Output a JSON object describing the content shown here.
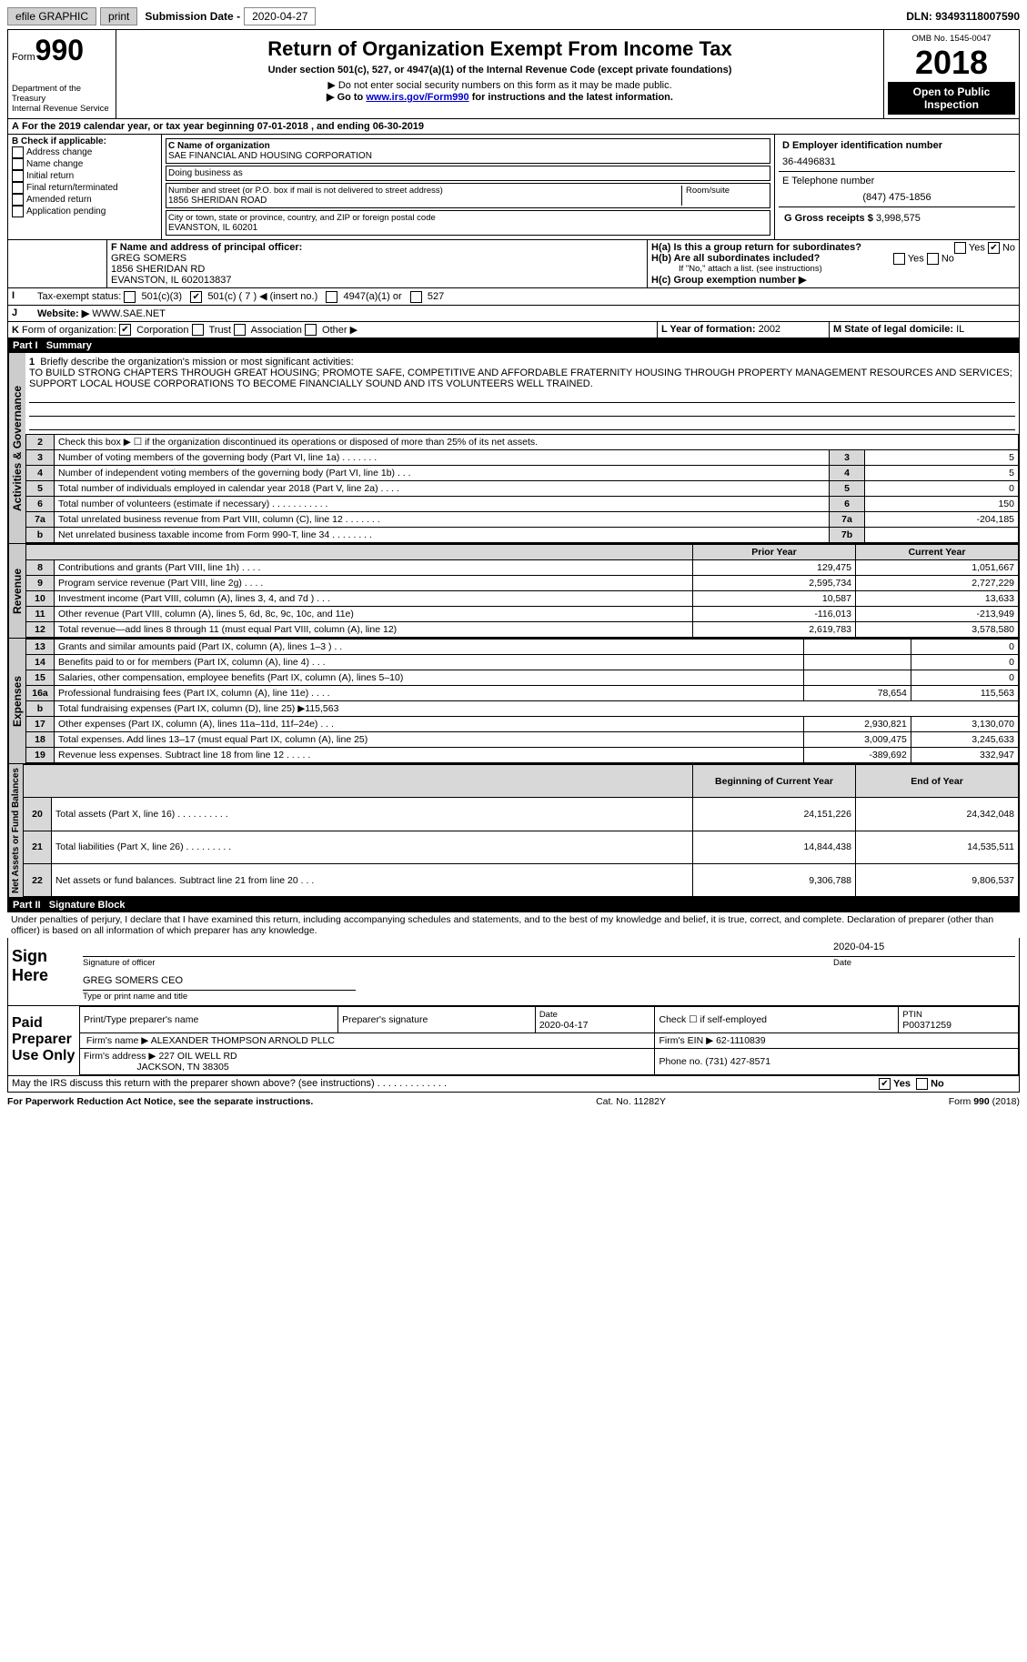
{
  "topbar": {
    "efile": "efile GRAPHIC",
    "print": "print",
    "subdate_lbl": "Submission Date -",
    "subdate": "2020-04-27",
    "dln": "DLN: 93493118007590"
  },
  "header": {
    "form_word": "Form",
    "form_num": "990",
    "dept": "Department of the Treasury\nInternal Revenue Service",
    "title": "Return of Organization Exempt From Income Tax",
    "subtitle": "Under section 501(c), 527, or 4947(a)(1) of the Internal Revenue Code (except private foundations)",
    "note1": "▶ Do not enter social security numbers on this form as it may be made public.",
    "note2_pre": "▶ Go to ",
    "note2_link": "www.irs.gov/Form990",
    "note2_post": " for instructions and the latest information.",
    "omb": "OMB No. 1545-0047",
    "year": "2018",
    "open": "Open to Public Inspection"
  },
  "periodA": "For the 2019 calendar year, or tax year beginning 07-01-2018    , and ending 06-30-2019",
  "B": {
    "title": "B Check if applicable:",
    "items": [
      "Address change",
      "Name change",
      "Initial return",
      "Final return/terminated",
      "Amended return",
      "Application pending"
    ]
  },
  "C": {
    "name_lbl": "C Name of organization",
    "name": "SAE FINANCIAL AND HOUSING CORPORATION",
    "dba_lbl": "Doing business as",
    "street_lbl": "Number and street (or P.O. box if mail is not delivered to street address)",
    "room_lbl": "Room/suite",
    "street": "1856 SHERIDAN ROAD",
    "city_lbl": "City or town, state or province, country, and ZIP or foreign postal code",
    "city": "EVANSTON, IL  60201"
  },
  "D": {
    "lbl": "D Employer identification number",
    "val": "36-4496831"
  },
  "E": {
    "lbl": "E Telephone number",
    "val": "(847) 475-1856"
  },
  "G": {
    "lbl": "G Gross receipts $",
    "val": "3,998,575"
  },
  "F": {
    "lbl": "F  Name and address of principal officer:",
    "name": "GREG SOMERS",
    "addr1": "1856 SHERIDAN RD",
    "addr2": "EVANSTON, IL  602013837"
  },
  "H": {
    "a": "H(a)  Is this a group return for subordinates?",
    "b": "H(b)  Are all subordinates included?",
    "bnote": "If \"No,\" attach a list. (see instructions)",
    "c": "H(c)  Group exemption number ▶",
    "yes": "Yes",
    "no": "No"
  },
  "I": {
    "lbl": "Tax-exempt status:",
    "a": "501(c)(3)",
    "b": "501(c) ( 7 ) ◀ (insert no.)",
    "c": "4947(a)(1) or",
    "d": "527"
  },
  "J": {
    "lbl": "Website: ▶",
    "val": "WWW.SAE.NET"
  },
  "K": {
    "lbl": "Form of organization:",
    "a": "Corporation",
    "b": "Trust",
    "c": "Association",
    "d": "Other ▶"
  },
  "L": {
    "lbl": "L Year of formation:",
    "val": "2002"
  },
  "M": {
    "lbl": "M State of legal domicile:",
    "val": "IL"
  },
  "part1": {
    "label": "Part I",
    "title": "Summary"
  },
  "mission": {
    "lbl": "Briefly describe the organization's mission or most significant activities:",
    "text": "TO BUILD STRONG CHAPTERS THROUGH GREAT HOUSING; PROMOTE SAFE, COMPETITIVE AND AFFORDABLE FRATERNITY HOUSING THROUGH PROPERTY MANAGEMENT RESOURCES AND SERVICES; SUPPORT LOCAL HOUSE CORPORATIONS TO BECOME FINANCIALLY SOUND AND ITS VOLUNTEERS WELL TRAINED."
  },
  "ag_label": "Activities & Governance",
  "rev_label": "Revenue",
  "exp_label": "Expenses",
  "na_label": "Net Assets or Fund Balances",
  "lines_ag": [
    {
      "n": "2",
      "d": "Check this box ▶ ☐  if the organization discontinued its operations or disposed of more than 25% of its net assets."
    },
    {
      "n": "3",
      "d": "Number of voting members of the governing body (Part VI, line 1a)   .     .     .     .     .     .     .",
      "box": "3",
      "v": "5"
    },
    {
      "n": "4",
      "d": "Number of independent voting members of the governing body (Part VI, line 1b)   .     .     .",
      "box": "4",
      "v": "5"
    },
    {
      "n": "5",
      "d": "Total number of individuals employed in calendar year 2018 (Part V, line 2a)   .     .     .     .",
      "box": "5",
      "v": "0"
    },
    {
      "n": "6",
      "d": "Total number of volunteers (estimate if necessary)    .     .     .     .     .     .     .     .     .     .     .",
      "box": "6",
      "v": "150"
    },
    {
      "n": "7a",
      "d": "Total unrelated business revenue from Part VIII, column (C), line 12   .     .     .     .     .     .     .",
      "box": "7a",
      "v": "-204,185"
    },
    {
      "n": "b",
      "d": "Net unrelated business taxable income from Form 990-T, line 34   .     .     .     .     .     .     .     .",
      "box": "7b",
      "v": ""
    }
  ],
  "col_py": "Prior Year",
  "col_cy": "Current Year",
  "lines_rev": [
    {
      "n": "8",
      "d": "Contributions and grants (Part VIII, line 1h)   .     .     .     .",
      "py": "129,475",
      "cy": "1,051,667"
    },
    {
      "n": "9",
      "d": "Program service revenue (Part VIII, line 2g)   .     .     .     .",
      "py": "2,595,734",
      "cy": "2,727,229"
    },
    {
      "n": "10",
      "d": "Investment income (Part VIII, column (A), lines 3, 4, and 7d )   .     .     .",
      "py": "10,587",
      "cy": "13,633"
    },
    {
      "n": "11",
      "d": "Other revenue (Part VIII, column (A), lines 5, 6d, 8c, 9c, 10c, and 11e)",
      "py": "-116,013",
      "cy": "-213,949"
    },
    {
      "n": "12",
      "d": "Total revenue—add lines 8 through 11 (must equal Part VIII, column (A), line 12)",
      "py": "2,619,783",
      "cy": "3,578,580"
    }
  ],
  "lines_exp": [
    {
      "n": "13",
      "d": "Grants and similar amounts paid (Part IX, column (A), lines 1–3 )   .     .",
      "py": "",
      "cy": "0"
    },
    {
      "n": "14",
      "d": "Benefits paid to or for members (Part IX, column (A), line 4)   .     .     .",
      "py": "",
      "cy": "0"
    },
    {
      "n": "15",
      "d": "Salaries, other compensation, employee benefits (Part IX, column (A), lines 5–10)",
      "py": "",
      "cy": "0"
    },
    {
      "n": "16a",
      "d": "Professional fundraising fees (Part IX, column (A), line 11e)   .     .     .     .",
      "py": "78,654",
      "cy": "115,563"
    },
    {
      "n": "b",
      "d": "Total fundraising expenses (Part IX, column (D), line 25) ▶115,563",
      "py": "",
      "cy": ""
    },
    {
      "n": "17",
      "d": "Other expenses (Part IX, column (A), lines 11a–11d, 11f–24e)   .     .     .",
      "py": "2,930,821",
      "cy": "3,130,070"
    },
    {
      "n": "18",
      "d": "Total expenses. Add lines 13–17 (must equal Part IX, column (A), line 25)",
      "py": "3,009,475",
      "cy": "3,245,633"
    },
    {
      "n": "19",
      "d": "Revenue less expenses. Subtract line 18 from line 12    .     .     .     .     .",
      "py": "-389,692",
      "cy": "332,947"
    }
  ],
  "col_boy": "Beginning of Current Year",
  "col_eoy": "End of Year",
  "lines_na": [
    {
      "n": "20",
      "d": "Total assets (Part X, line 16)   .     .     .     .     .     .     .     .     .     .",
      "py": "24,151,226",
      "cy": "24,342,048"
    },
    {
      "n": "21",
      "d": "Total liabilities (Part X, line 26)   .     .     .     .     .     .     .     .     .",
      "py": "14,844,438",
      "cy": "14,535,511"
    },
    {
      "n": "22",
      "d": "Net assets or fund balances. Subtract line 21 from line 20   .     .     .",
      "py": "9,306,788",
      "cy": "9,806,537"
    }
  ],
  "part2": {
    "label": "Part II",
    "title": "Signature Block"
  },
  "penalty": "Under penalties of perjury, I declare that I have examined this return, including accompanying schedules and statements, and to the best of my knowledge and belief, it is true, correct, and complete. Declaration of preparer (other than officer) is based on all information of which preparer has any knowledge.",
  "sign": {
    "here": "Sign Here",
    "sig_lbl": "Signature of officer",
    "date_lbl": "Date",
    "date": "2020-04-15",
    "name": "GREG SOMERS CEO",
    "name_lbl": "Type or print name and title"
  },
  "paid": {
    "title": "Paid Preparer Use Only",
    "c1": "Print/Type preparer's name",
    "c2": "Preparer's signature",
    "c3": "Date",
    "c3v": "2020-04-17",
    "c4": "Check ☐  if self-employed",
    "c5": "PTIN",
    "c5v": "P00371259",
    "firm_lbl": "Firm's name     ▶",
    "firm": "ALEXANDER THOMPSON ARNOLD PLLC",
    "ein_lbl": "Firm's EIN ▶",
    "ein": "62-1110839",
    "addr_lbl": "Firm's address ▶",
    "addr1": "227 OIL WELL RD",
    "addr2": "JACKSON, TN  38305",
    "ph_lbl": "Phone no.",
    "ph": "(731) 427-8571"
  },
  "discuss": "May the IRS discuss this return with the preparer shown above? (see instructions)    .     .     .     .     .     .     .     .     .     .     .     .     .",
  "footer": {
    "a": "For Paperwork Reduction Act Notice, see the separate instructions.",
    "b": "Cat. No. 11282Y",
    "c": "Form 990 (2018)"
  }
}
